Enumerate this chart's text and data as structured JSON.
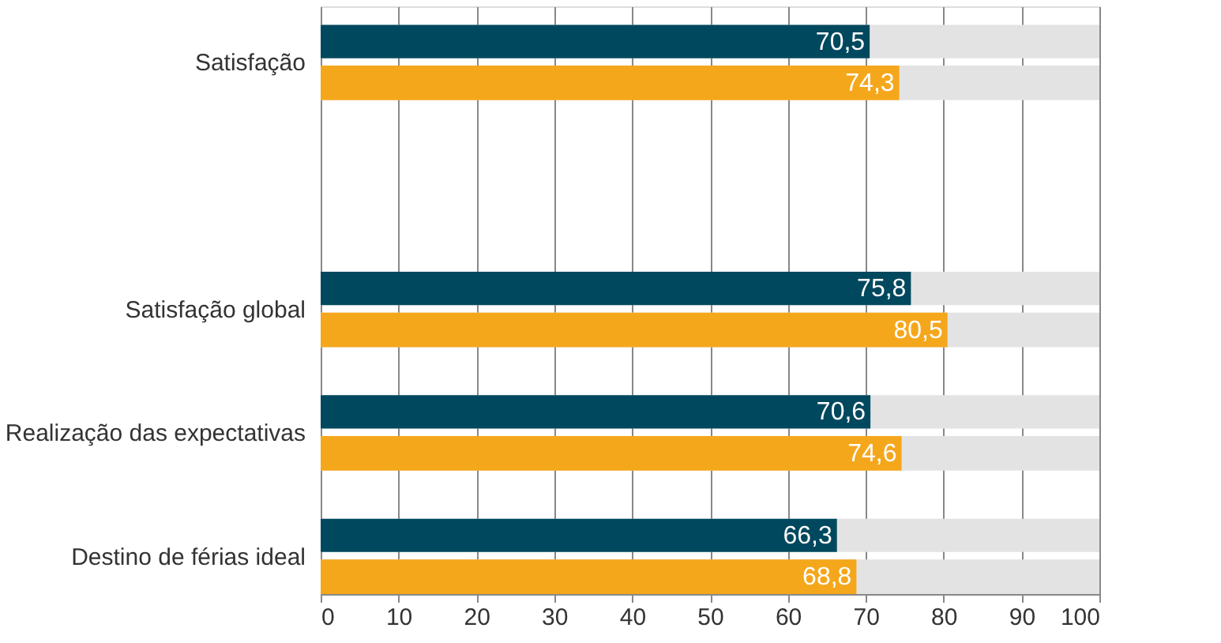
{
  "chart_data": {
    "type": "bar",
    "orientation": "horizontal",
    "categories": [
      "Satisfação",
      null,
      "Satisfação global",
      "Realização das expectativas",
      "Destino de férias ideal"
    ],
    "series": [
      {
        "color": "#00485e",
        "values": [
          70.5,
          null,
          75.8,
          70.6,
          66.3
        ],
        "value_labels": [
          "70,5",
          null,
          "75,8",
          "70,6",
          "66,3"
        ]
      },
      {
        "color": "#f5a71c",
        "values": [
          74.3,
          null,
          80.5,
          74.6,
          68.8
        ],
        "value_labels": [
          "74,3",
          null,
          "80,5",
          "74,6",
          "68,8"
        ]
      }
    ],
    "bands": [
      {
        "axis": "x",
        "from": 0,
        "to": 100,
        "color": "#e3e3e3"
      }
    ],
    "xlim": [
      0,
      100
    ],
    "xticks": [
      0,
      10,
      20,
      30,
      40,
      50,
      60,
      70,
      80,
      90,
      100
    ],
    "grid": "x"
  }
}
